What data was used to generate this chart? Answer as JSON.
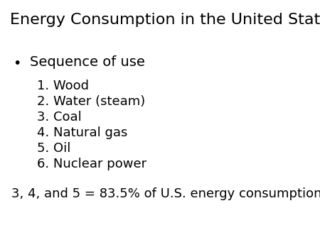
{
  "title": "Energy Consumption in the United States",
  "title_fontsize": 16,
  "background_color": "#ffffff",
  "text_color": "#000000",
  "bullet_symbol": "•",
  "bullet_text": "Sequence of use",
  "bullet_fontsize": 14,
  "list_items": [
    "1. Wood",
    "2. Water (steam)",
    "3. Coal",
    "4. Natural gas",
    "5. Oil",
    "6. Nuclear power"
  ],
  "list_fontsize": 13,
  "footer_text": "3, 4, and 5 = 83.5% of U.S. energy consumption",
  "footer_fontsize": 13
}
